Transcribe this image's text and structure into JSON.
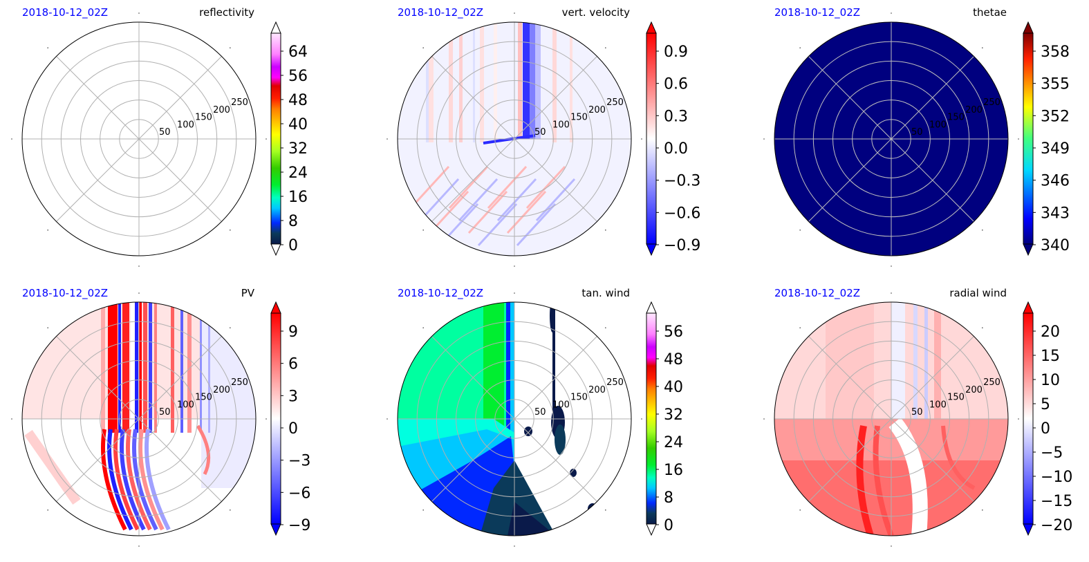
{
  "figure": {
    "timestamp": "2018-10-12_02Z"
  },
  "ring_labels": [
    "50",
    "100",
    "150",
    "200",
    "250"
  ],
  "colors": {
    "timestamp": "#0000ff",
    "grid": "#b0b0b0",
    "navy": "#00007f"
  },
  "chart_data": [
    {
      "type": "polar-contourf",
      "id": "reflectivity",
      "title": "reflectivity",
      "timestamp": "2018-10-12_02Z",
      "radial_ticks": [
        50,
        100,
        150,
        200,
        250
      ],
      "colorbar": {
        "ticks": [
          "64",
          "56",
          "48",
          "40",
          "32",
          "24",
          "16",
          "8",
          "0"
        ],
        "extend": "both",
        "colormap": "nws-reflectivity"
      },
      "field": "empty"
    },
    {
      "type": "polar-contourf",
      "id": "vert-velocity",
      "title": "vert. velocity",
      "timestamp": "2018-10-12_02Z",
      "radial_ticks": [
        50,
        100,
        150,
        200,
        250
      ],
      "colorbar": {
        "ticks": [
          "0.9",
          "0.6",
          "0.3",
          "0.0",
          "−0.3",
          "−0.6",
          "−0.9"
        ],
        "extend": "both",
        "colormap": "bwr"
      },
      "field": "near-zero with narrow positive and negative streaks"
    },
    {
      "type": "polar-contourf",
      "id": "thetae",
      "title": "thetae",
      "timestamp": "2018-10-12_02Z",
      "radial_ticks": [
        50,
        100,
        150,
        200,
        250
      ],
      "colorbar": {
        "ticks": [
          "358",
          "355",
          "352",
          "349",
          "346",
          "343",
          "340"
        ],
        "extend": "both",
        "colormap": "jet"
      },
      "field": "uniform minimum (navy)"
    },
    {
      "type": "polar-contourf",
      "id": "pv",
      "title": "PV",
      "timestamp": "2018-10-12_02Z",
      "radial_ticks": [
        50,
        100,
        150,
        200,
        250
      ],
      "colorbar": {
        "ticks": [
          "9",
          "6",
          "3",
          "0",
          "−3",
          "−6",
          "−9"
        ],
        "extend": "both",
        "colormap": "bwr"
      },
      "field": "strong alternating positive/negative bands in north and southwest"
    },
    {
      "type": "polar-contourf",
      "id": "tan-wind",
      "title": "tan. wind",
      "timestamp": "2018-10-12_02Z",
      "radial_ticks": [
        50,
        100,
        150,
        200,
        250
      ],
      "colorbar": {
        "ticks": [
          "56",
          "48",
          "40",
          "32",
          "24",
          "16",
          "8",
          "0"
        ],
        "extend": "both",
        "colormap": "nws-reflectivity"
      },
      "field": "west half 8-24, east half below range"
    },
    {
      "type": "polar-contourf",
      "id": "radial-wind",
      "title": "radial wind",
      "timestamp": "2018-10-12_02Z",
      "radial_ticks": [
        50,
        100,
        150,
        200,
        250
      ],
      "colorbar": {
        "ticks": [
          "20",
          "15",
          "10",
          "5",
          "0",
          "−5",
          "−10",
          "−15",
          "−20"
        ],
        "extend": "both",
        "colormap": "bwr"
      },
      "field": "mostly positive, strongest in southwest"
    }
  ]
}
